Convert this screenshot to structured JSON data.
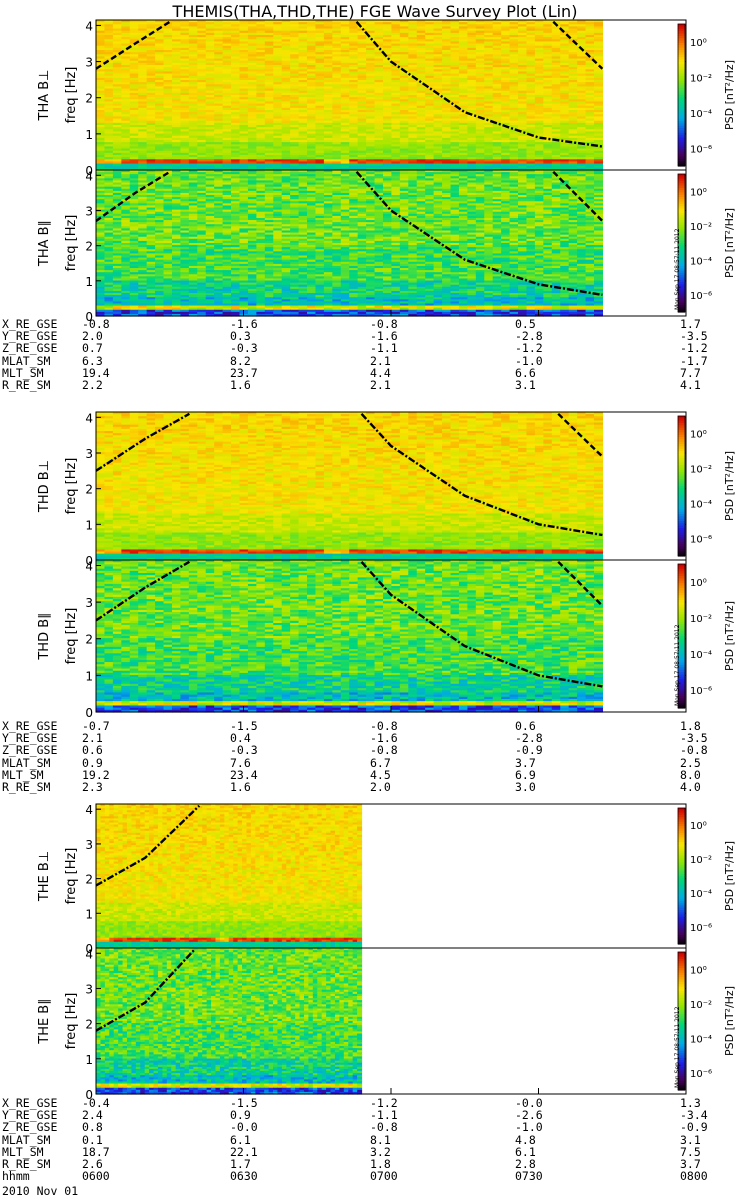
{
  "title": "THEMIS(THA,THD,THE) FGE Wave Survey Plot (Lin)",
  "colors": {
    "trace": "#000000"
  },
  "colorbar": {
    "label": "PSD [nT²/Hz]",
    "ticks": [
      "10⁻⁶",
      "10⁻⁴",
      "10⁻²",
      "10⁰"
    ],
    "exponents": [
      -6,
      -4,
      -2,
      0
    ]
  },
  "stamp": "Mon Sep 17 08:57:11 2012",
  "chart_data": {
    "type": "heatmap",
    "title": "THEMIS(THA,THD,THE) FGE Wave Survey Plot (Lin)",
    "xlim": [
      "0600",
      "0800"
    ],
    "ylim": [
      0,
      4
    ],
    "yticks": [
      "0",
      "1",
      "2",
      "3",
      "4"
    ],
    "ylabel": "freq [Hz]",
    "panels": [
      {
        "id": "tha_perp",
        "label": "THA B⊥",
        "data_end": "0743",
        "kind": "perp",
        "curves": [
          {
            "style": "dashed",
            "x": [
              "0600",
              "0608",
              "0615"
            ],
            "y": [
              2.8,
              3.5,
              4.1
            ]
          },
          {
            "style": "dashdot",
            "x": [
              "0653",
              "0700",
              "0715",
              "0730",
              "0743"
            ],
            "y": [
              4.1,
              3.0,
              1.6,
              0.9,
              0.65
            ]
          },
          {
            "style": "dashed",
            "x": [
              "0733",
              "0743"
            ],
            "y": [
              4.1,
              2.8
            ]
          }
        ]
      },
      {
        "id": "tha_par",
        "label": "THA B∥",
        "data_end": "0743",
        "kind": "par",
        "curves": [
          {
            "style": "dashed",
            "x": [
              "0600",
              "0608",
              "0615"
            ],
            "y": [
              2.7,
              3.5,
              4.1
            ]
          },
          {
            "style": "dashdot",
            "x": [
              "0653",
              "0700",
              "0715",
              "0730",
              "0743"
            ],
            "y": [
              4.1,
              3.0,
              1.6,
              0.9,
              0.6
            ]
          },
          {
            "style": "dashed",
            "x": [
              "0733",
              "0743"
            ],
            "y": [
              4.1,
              2.7
            ]
          }
        ]
      },
      {
        "id": "thd_perp",
        "label": "THD B⊥",
        "data_end": "0743",
        "kind": "perp",
        "curves": [
          {
            "style": "dashdot",
            "x": [
              "0600",
              "0610",
              "0619"
            ],
            "y": [
              2.5,
              3.4,
              4.1
            ]
          },
          {
            "style": "dashdot",
            "x": [
              "0654",
              "0700",
              "0715",
              "0730",
              "0743"
            ],
            "y": [
              4.1,
              3.2,
              1.8,
              1.0,
              0.7
            ]
          },
          {
            "style": "dashed",
            "x": [
              "0734",
              "0743"
            ],
            "y": [
              4.1,
              2.9
            ]
          }
        ]
      },
      {
        "id": "thd_par",
        "label": "THD B∥",
        "data_end": "0743",
        "kind": "par",
        "curves": [
          {
            "style": "dashdot",
            "x": [
              "0600",
              "0610",
              "0619"
            ],
            "y": [
              2.5,
              3.4,
              4.1
            ]
          },
          {
            "style": "dashdot",
            "x": [
              "0654",
              "0700",
              "0715",
              "0730",
              "0743"
            ],
            "y": [
              4.1,
              3.2,
              1.8,
              1.0,
              0.7
            ]
          },
          {
            "style": "dashed",
            "x": [
              "0734",
              "0743"
            ],
            "y": [
              4.1,
              2.9
            ]
          }
        ]
      },
      {
        "id": "the_perp",
        "label": "THE B⊥",
        "data_end": "0654",
        "kind": "perp",
        "curves": [
          {
            "style": "dashdot",
            "x": [
              "0600",
              "0610",
              "0621"
            ],
            "y": [
              1.8,
              2.6,
              4.1
            ]
          }
        ]
      },
      {
        "id": "the_par",
        "label": "THE B∥",
        "data_end": "0654",
        "kind": "par",
        "curves": [
          {
            "style": "dashdot",
            "x": [
              "0600",
              "0610",
              "0620"
            ],
            "y": [
              1.8,
              2.6,
              4.1
            ]
          }
        ]
      }
    ],
    "ephemeris": [
      {
        "probe": "THA",
        "rows": [
          {
            "label": "X_RE_GSE",
            "values": [
              "-0.8",
              "-1.6",
              "-0.8",
              "0.5",
              "1.7"
            ]
          },
          {
            "label": "Y_RE_GSE",
            "values": [
              "2.0",
              "0.3",
              "-1.6",
              "-2.8",
              "-3.5"
            ]
          },
          {
            "label": "Z_RE_GSE",
            "values": [
              "0.7",
              "-0.3",
              "-1.1",
              "-1.2",
              "-1.2"
            ]
          },
          {
            "label": "MLAT_SM",
            "values": [
              "6.3",
              "8.2",
              "2.1",
              "-1.0",
              "-1.7"
            ]
          },
          {
            "label": "MLT_SM",
            "values": [
              "19.4",
              "23.7",
              "4.4",
              "6.6",
              "7.7"
            ]
          },
          {
            "label": "R_RE_SM",
            "values": [
              "2.2",
              "1.6",
              "2.1",
              "3.1",
              "4.1"
            ]
          }
        ]
      },
      {
        "probe": "THD",
        "rows": [
          {
            "label": "X_RE_GSE",
            "values": [
              "-0.7",
              "-1.5",
              "-0.8",
              "0.6",
              "1.8"
            ]
          },
          {
            "label": "Y_RE_GSE",
            "values": [
              "2.1",
              "0.4",
              "-1.6",
              "-2.8",
              "-3.5"
            ]
          },
          {
            "label": "Z_RE_GSE",
            "values": [
              "0.6",
              "-0.3",
              "-0.8",
              "-0.9",
              "-0.8"
            ]
          },
          {
            "label": "MLAT_SM",
            "values": [
              "0.9",
              "7.6",
              "6.7",
              "3.7",
              "2.5"
            ]
          },
          {
            "label": "MLT_SM",
            "values": [
              "19.2",
              "23.4",
              "4.5",
              "6.9",
              "8.0"
            ]
          },
          {
            "label": "R_RE_SM",
            "values": [
              "2.3",
              "1.6",
              "2.0",
              "3.0",
              "4.0"
            ]
          }
        ]
      },
      {
        "probe": "THE",
        "rows": [
          {
            "label": "X_RE_GSE",
            "values": [
              "-0.4",
              "-1.5",
              "-1.2",
              "-0.0",
              "1.3"
            ]
          },
          {
            "label": "Y_RE_GSE",
            "values": [
              "2.4",
              "0.9",
              "-1.1",
              "-2.6",
              "-3.4"
            ]
          },
          {
            "label": "Z_RE_GSE",
            "values": [
              "0.8",
              "-0.0",
              "-0.8",
              "-1.0",
              "-0.9"
            ]
          },
          {
            "label": "MLAT_SM",
            "values": [
              "0.1",
              "6.1",
              "8.1",
              "4.8",
              "3.1"
            ]
          },
          {
            "label": "MLT_SM",
            "values": [
              "18.7",
              "22.1",
              "3.2",
              "6.1",
              "7.5"
            ]
          },
          {
            "label": "R_RE_SM",
            "values": [
              "2.6",
              "1.7",
              "1.8",
              "2.8",
              "3.7"
            ]
          },
          {
            "label": "hhmm",
            "values": [
              "0600",
              "0630",
              "0700",
              "0730",
              "0800"
            ]
          }
        ]
      }
    ],
    "date": "2010 Nov 01"
  }
}
